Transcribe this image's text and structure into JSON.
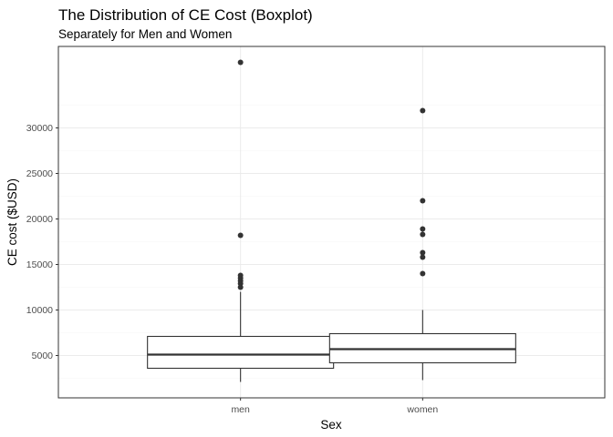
{
  "chart_data": {
    "type": "boxplot",
    "title": "The Distribution of CE Cost (Boxplot)",
    "subtitle": "Separately for Men and Women",
    "xlabel": "Sex",
    "ylabel": "CE cost ($USD)",
    "categories": [
      "men",
      "women"
    ],
    "ylim": [
      1000,
      39000
    ],
    "y_ticks": [
      5000,
      10000,
      15000,
      20000,
      25000,
      30000
    ],
    "y_tick_labels": [
      "5000",
      "10000",
      "15000",
      "20000",
      "25000",
      "30000"
    ],
    "grid": true,
    "boxes": [
      {
        "category": "men",
        "lower_whisker": 2100,
        "q1": 3600,
        "median": 5100,
        "q3": 7100,
        "upper_whisker": 12000,
        "outliers": [
          12500,
          12900,
          13200,
          13500,
          13800,
          18200,
          37200
        ]
      },
      {
        "category": "women",
        "lower_whisker": 2300,
        "q1": 4200,
        "median": 5700,
        "q3": 7400,
        "upper_whisker": 10000,
        "outliers": [
          14000,
          15800,
          16300,
          18300,
          18900,
          22000,
          31900
        ]
      }
    ],
    "colors": {
      "box_fill": "#ffffff",
      "box_stroke": "#333333",
      "outlier": "#333333",
      "grid_major": "#ebebeb",
      "grid_minor": "#f5f5f5",
      "panel_border": "#333333",
      "tick_label": "#4d4d4d"
    }
  }
}
